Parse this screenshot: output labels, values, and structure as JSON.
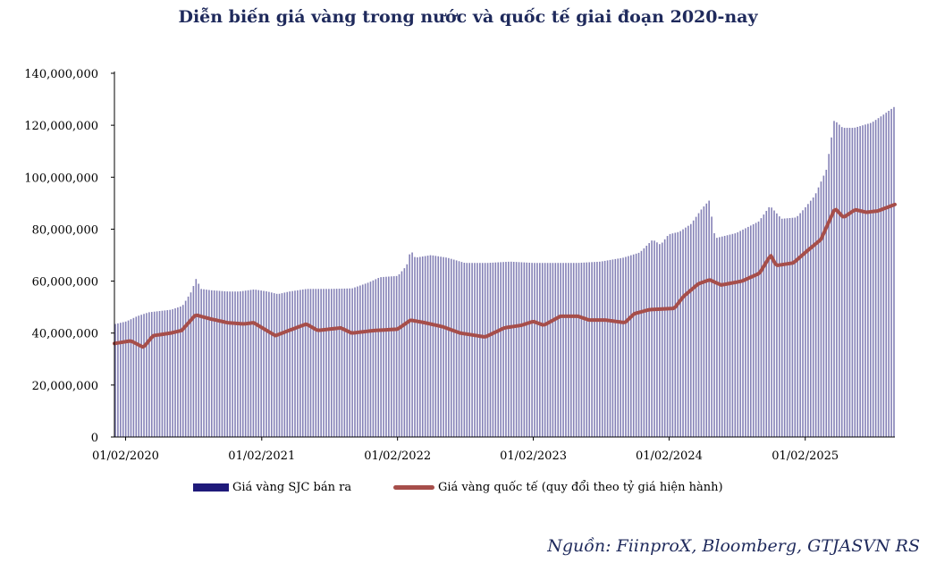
{
  "chart_data": {
    "type": "bar",
    "title": "Diễn biến giá vàng trong nước và quốc tế giai đoạn 2020-nay",
    "xlabel": "",
    "ylabel": "",
    "ylim": [
      0,
      140000000
    ],
    "yticks": [
      "0",
      "20,000,000",
      "40,000,000",
      "60,000,000",
      "80,000,000",
      "100,000,000",
      "120,000,000",
      "140,000,000"
    ],
    "xticks": [
      "01/02/2020",
      "01/02/2021",
      "01/02/2022",
      "01/02/2023",
      "01/02/2024",
      "01/02/2025"
    ],
    "x_range": [
      "2020-01-02",
      "2025-09-30"
    ],
    "grid": false,
    "legend_position": "bottom",
    "series": [
      {
        "name": "Giá vàng SJC bán ra",
        "type": "bar",
        "color": "#1f1a7a",
        "points": [
          [
            "2020-01-02",
            43500000
          ],
          [
            "2020-02-01",
            44500000
          ],
          [
            "2020-03-01",
            46500000
          ],
          [
            "2020-04-01",
            48000000
          ],
          [
            "2020-05-01",
            48500000
          ],
          [
            "2020-06-01",
            49000000
          ],
          [
            "2020-07-01",
            50500000
          ],
          [
            "2020-07-25",
            56000000
          ],
          [
            "2020-08-07",
            61000000
          ],
          [
            "2020-08-20",
            57000000
          ],
          [
            "2020-09-15",
            56500000
          ],
          [
            "2020-11-01",
            56000000
          ],
          [
            "2020-12-01",
            56000000
          ],
          [
            "2021-01-10",
            56800000
          ],
          [
            "2021-02-15",
            56000000
          ],
          [
            "2021-03-15",
            55000000
          ],
          [
            "2021-04-15",
            56000000
          ],
          [
            "2021-06-01",
            57000000
          ],
          [
            "2021-08-01",
            57000000
          ],
          [
            "2021-10-01",
            57200000
          ],
          [
            "2021-11-15",
            59500000
          ],
          [
            "2021-12-15",
            61500000
          ],
          [
            "2022-02-01",
            62000000
          ],
          [
            "2022-02-25",
            66000000
          ],
          [
            "2022-03-08",
            72000000
          ],
          [
            "2022-03-20",
            69000000
          ],
          [
            "2022-05-01",
            70000000
          ],
          [
            "2022-06-15",
            69000000
          ],
          [
            "2022-08-01",
            67000000
          ],
          [
            "2022-10-01",
            67000000
          ],
          [
            "2022-12-01",
            67500000
          ],
          [
            "2023-02-01",
            67000000
          ],
          [
            "2023-04-01",
            67000000
          ],
          [
            "2023-06-01",
            67000000
          ],
          [
            "2023-08-01",
            67500000
          ],
          [
            "2023-10-01",
            69000000
          ],
          [
            "2023-11-15",
            71000000
          ],
          [
            "2023-12-20",
            76000000
          ],
          [
            "2024-01-10",
            74000000
          ],
          [
            "2024-02-01",
            78000000
          ],
          [
            "2024-03-01",
            79000000
          ],
          [
            "2024-04-01",
            82000000
          ],
          [
            "2024-05-01",
            88000000
          ],
          [
            "2024-05-20",
            91000000
          ],
          [
            "2024-06-05",
            76500000
          ],
          [
            "2024-08-01",
            78500000
          ],
          [
            "2024-10-01",
            83000000
          ],
          [
            "2024-10-31",
            89000000
          ],
          [
            "2024-12-01",
            84000000
          ],
          [
            "2025-01-10",
            84500000
          ],
          [
            "2025-02-01",
            88000000
          ],
          [
            "2025-03-01",
            93000000
          ],
          [
            "2025-04-01",
            103000000
          ],
          [
            "2025-04-22",
            122000000
          ],
          [
            "2025-05-15",
            119000000
          ],
          [
            "2025-06-15",
            119000000
          ],
          [
            "2025-08-01",
            121000000
          ],
          [
            "2025-09-01",
            124000000
          ],
          [
            "2025-09-30",
            127000000
          ]
        ]
      },
      {
        "name": "Giá vàng quốc tế (quy đổi theo tỷ giá hiện hành)",
        "type": "line",
        "color": "#a64e4a",
        "points": [
          [
            "2020-01-02",
            36000000
          ],
          [
            "2020-02-15",
            37000000
          ],
          [
            "2020-03-20",
            34500000
          ],
          [
            "2020-04-15",
            39000000
          ],
          [
            "2020-06-01",
            40000000
          ],
          [
            "2020-07-01",
            41000000
          ],
          [
            "2020-08-07",
            47000000
          ],
          [
            "2020-09-15",
            45500000
          ],
          [
            "2020-11-01",
            44000000
          ],
          [
            "2020-12-15",
            43500000
          ],
          [
            "2021-01-10",
            44000000
          ],
          [
            "2021-03-10",
            39000000
          ],
          [
            "2021-04-15",
            41000000
          ],
          [
            "2021-06-01",
            43500000
          ],
          [
            "2021-07-01",
            41000000
          ],
          [
            "2021-09-01",
            42000000
          ],
          [
            "2021-10-01",
            40000000
          ],
          [
            "2021-12-01",
            41000000
          ],
          [
            "2022-02-01",
            41500000
          ],
          [
            "2022-03-08",
            45000000
          ],
          [
            "2022-04-15",
            44000000
          ],
          [
            "2022-06-01",
            42500000
          ],
          [
            "2022-07-20",
            40000000
          ],
          [
            "2022-09-25",
            38500000
          ],
          [
            "2022-11-15",
            42000000
          ],
          [
            "2022-12-31",
            43000000
          ],
          [
            "2023-02-01",
            44500000
          ],
          [
            "2023-03-01",
            43000000
          ],
          [
            "2023-04-15",
            46500000
          ],
          [
            "2023-06-01",
            46500000
          ],
          [
            "2023-07-01",
            45000000
          ],
          [
            "2023-08-15",
            45000000
          ],
          [
            "2023-10-05",
            44000000
          ],
          [
            "2023-10-31",
            47500000
          ],
          [
            "2023-12-10",
            49000000
          ],
          [
            "2024-02-15",
            49500000
          ],
          [
            "2024-03-10",
            54000000
          ],
          [
            "2024-04-20",
            59000000
          ],
          [
            "2024-05-20",
            60500000
          ],
          [
            "2024-06-20",
            58500000
          ],
          [
            "2024-08-15",
            60000000
          ],
          [
            "2024-10-01",
            63000000
          ],
          [
            "2024-10-31",
            70000000
          ],
          [
            "2024-11-15",
            66000000
          ],
          [
            "2024-12-31",
            67000000
          ],
          [
            "2025-02-01",
            71000000
          ],
          [
            "2025-03-15",
            76000000
          ],
          [
            "2025-04-22",
            88000000
          ],
          [
            "2025-05-15",
            84500000
          ],
          [
            "2025-06-15",
            87500000
          ],
          [
            "2025-07-15",
            86500000
          ],
          [
            "2025-08-15",
            87000000
          ],
          [
            "2025-09-30",
            89500000
          ]
        ]
      }
    ]
  },
  "source_note": "Nguồn: FiinproX, Bloomberg, GTJASVN RS"
}
